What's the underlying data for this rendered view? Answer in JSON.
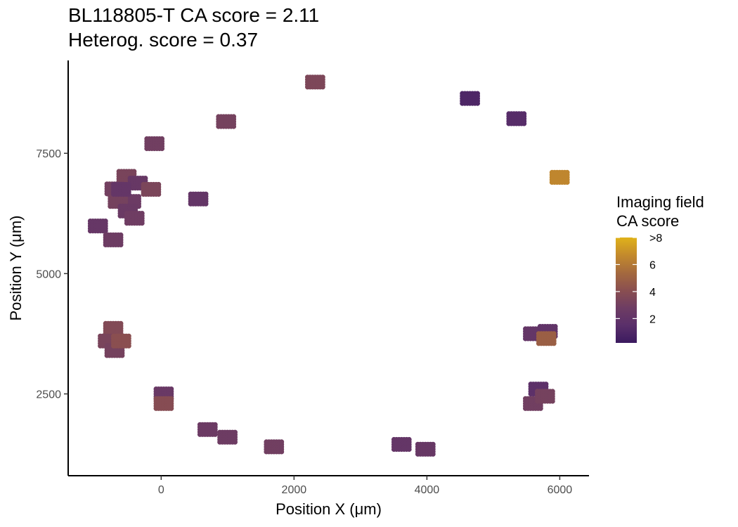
{
  "chart_data": {
    "type": "scatter",
    "title": "BL118805-T  CA score = 2.11",
    "subtitle": "Heterog. score = 0.37",
    "xlabel": "Position X (μm)",
    "ylabel": "Position Y (μm)",
    "xlim": [
      -1400,
      6440
    ],
    "ylim": [
      800,
      9430
    ],
    "x_ticks": [
      0,
      2000,
      4000,
      6000
    ],
    "y_ticks": [
      2500,
      5000,
      7500
    ],
    "x_tick_labels": [
      "0",
      "2000",
      "4000",
      "6000"
    ],
    "y_tick_labels": [
      "2500",
      "5000",
      "7500"
    ],
    "grid": false,
    "legend": {
      "title_lines": [
        "Imaging field",
        "CA score"
      ],
      "labels": [
        "2",
        "4",
        "6",
        ">8"
      ],
      "position": "right",
      "colors": [
        "#3b1a5f",
        "#5a2f6a",
        "#6e3d63",
        "#8a4f50",
        "#a56a3e",
        "#c38a2c",
        "#e0b21a"
      ]
    },
    "clusters": [
      {
        "x": 2320,
        "y": 8980,
        "score": 3.4
      },
      {
        "x": 4650,
        "y": 8640,
        "score": 0.8
      },
      {
        "x": 5350,
        "y": 8220,
        "score": 1.2
      },
      {
        "x": 6000,
        "y": 7000,
        "score": 6.5
      },
      {
        "x": 980,
        "y": 8160,
        "score": 3.0
      },
      {
        "x": -100,
        "y": 7700,
        "score": 2.8
      },
      {
        "x": -520,
        "y": 7020,
        "score": 3.2
      },
      {
        "x": -700,
        "y": 6760,
        "score": 2.9
      },
      {
        "x": -350,
        "y": 6880,
        "score": 2.2
      },
      {
        "x": -150,
        "y": 6750,
        "score": 3.3
      },
      {
        "x": -450,
        "y": 6500,
        "score": 2.5
      },
      {
        "x": -650,
        "y": 6500,
        "score": 3.0
      },
      {
        "x": -500,
        "y": 6300,
        "score": 2.4
      },
      {
        "x": -400,
        "y": 6150,
        "score": 2.7
      },
      {
        "x": -600,
        "y": 6750,
        "score": 2.0
      },
      {
        "x": 560,
        "y": 6550,
        "score": 2.0
      },
      {
        "x": -950,
        "y": 5990,
        "score": 2.1
      },
      {
        "x": -720,
        "y": 5700,
        "score": 2.6
      },
      {
        "x": -720,
        "y": 3860,
        "score": 3.6
      },
      {
        "x": -800,
        "y": 3600,
        "score": 3.2
      },
      {
        "x": -700,
        "y": 3400,
        "score": 3.0
      },
      {
        "x": -600,
        "y": 3600,
        "score": 4.0
      },
      {
        "x": 40,
        "y": 2500,
        "score": 2.3
      },
      {
        "x": 40,
        "y": 2300,
        "score": 3.8
      },
      {
        "x": 700,
        "y": 1760,
        "score": 2.5
      },
      {
        "x": 1000,
        "y": 1600,
        "score": 2.6
      },
      {
        "x": 1700,
        "y": 1400,
        "score": 2.8
      },
      {
        "x": 3620,
        "y": 1450,
        "score": 2.0
      },
      {
        "x": 3980,
        "y": 1350,
        "score": 2.2
      },
      {
        "x": 5600,
        "y": 3750,
        "score": 2.0
      },
      {
        "x": 5820,
        "y": 3800,
        "score": 1.8
      },
      {
        "x": 5800,
        "y": 3650,
        "score": 4.8
      },
      {
        "x": 5680,
        "y": 2600,
        "score": 1.5
      },
      {
        "x": 5600,
        "y": 2300,
        "score": 2.8
      },
      {
        "x": 5780,
        "y": 2450,
        "score": 3.0
      }
    ]
  }
}
